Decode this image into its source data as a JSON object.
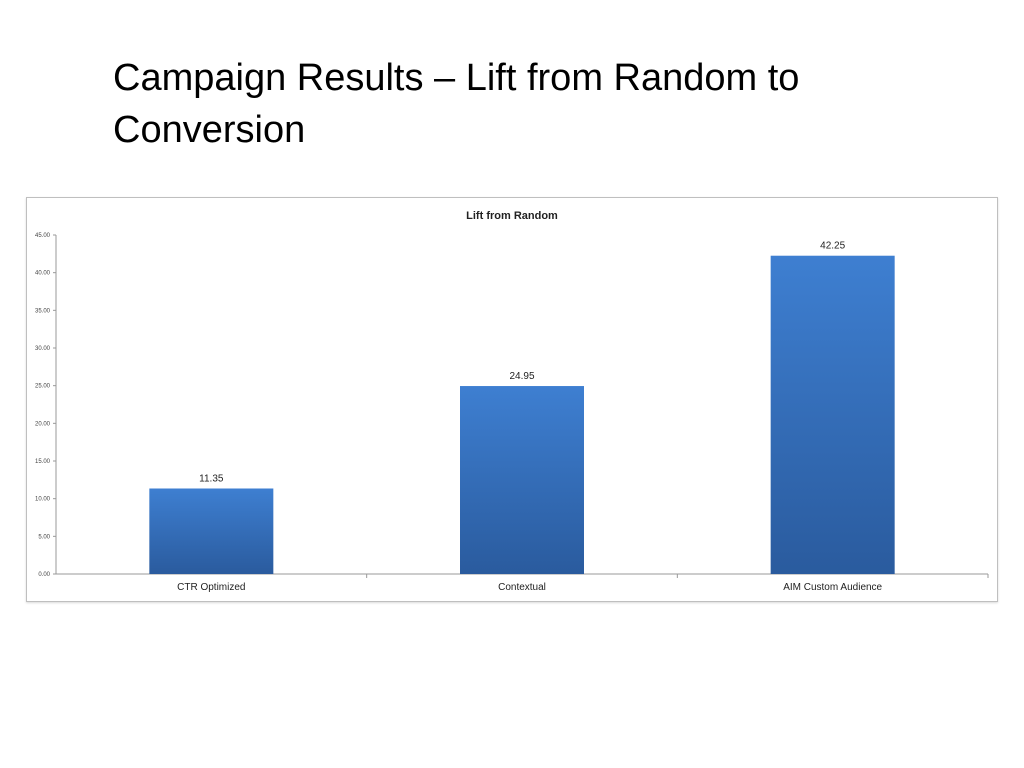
{
  "slide": {
    "title_line1": "Campaign Results – Lift from Random to",
    "title_line2": "Conversion"
  },
  "chart_data": {
    "type": "bar",
    "title": "Lift from Random",
    "categories": [
      "CTR Optimized",
      "Contextual",
      "AIM Custom Audience"
    ],
    "values": [
      11.35,
      24.95,
      42.25
    ],
    "data_labels": [
      "11.35",
      "24.95",
      "42.25"
    ],
    "ylim": [
      0,
      45
    ],
    "yticks": [
      "0.00",
      "5.00",
      "10.00",
      "15.00",
      "20.00",
      "25.00",
      "30.00",
      "35.00",
      "40.00",
      "45.00"
    ],
    "xlabel": "",
    "ylabel": "",
    "grid": false,
    "legend": "none",
    "colors": {
      "bar_top": "#3e7fd1",
      "bar_bottom": "#2a5b9e"
    }
  }
}
